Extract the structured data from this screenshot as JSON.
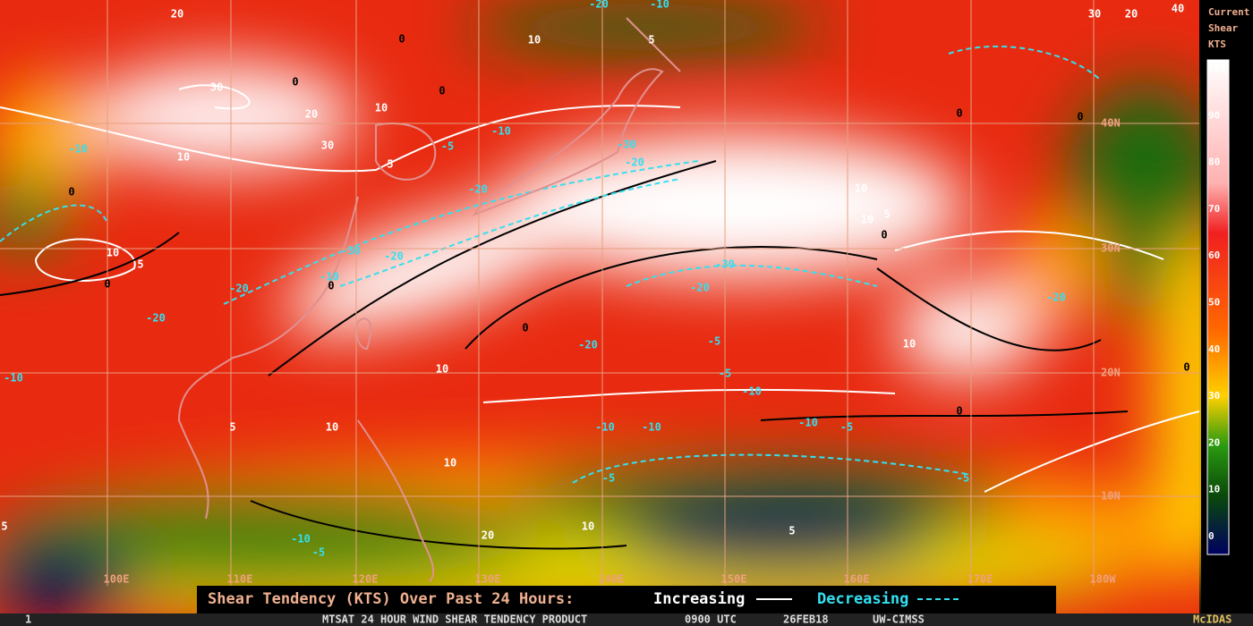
{
  "legend": {
    "title": [
      "Current",
      "Shear",
      "KTS"
    ],
    "ticks": [
      100,
      90,
      80,
      70,
      60,
      50,
      40,
      30,
      20,
      10,
      0
    ]
  },
  "grid_labels": {
    "lon": [
      "100E",
      "110E",
      "120E",
      "130E",
      "140E",
      "150E",
      "160E",
      "170E",
      "180W"
    ],
    "lat": [
      "40N",
      "30N",
      "20N",
      "10N"
    ]
  },
  "caption": {
    "title": "Shear Tendency (KTS) Over Past 24 Hours:",
    "increasing": "Increasing",
    "decreasing": "Decreasing"
  },
  "footer": {
    "frame": "1",
    "product": "MTSAT 24 HOUR WIND SHEAR TENDENCY PRODUCT",
    "time": "0900 UTC",
    "date": "26FEB18",
    "source": "UW-CIMSS",
    "brand": "McIDAS"
  },
  "contour_labels": {
    "increasing": [
      20,
      30,
      20,
      10,
      30,
      10,
      5,
      10,
      5,
      10,
      5,
      10,
      10,
      5,
      10,
      10,
      5,
      10,
      5,
      10,
      20,
      10,
      5,
      30,
      40,
      20
    ],
    "zero": [
      0,
      0,
      0,
      0,
      0,
      0,
      0,
      0,
      0,
      0,
      0,
      0
    ],
    "decreasing": [
      -10,
      -20,
      -10,
      -5,
      -20,
      -10,
      -20,
      -30,
      -20,
      -30,
      -10,
      -20,
      -20,
      -30,
      -20,
      -5,
      -10,
      -5,
      -10,
      -10,
      -5,
      -5,
      -10,
      -5,
      -20,
      -20,
      -10,
      -5,
      -10
    ]
  }
}
